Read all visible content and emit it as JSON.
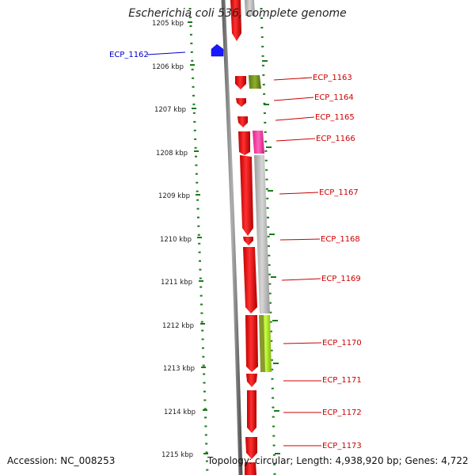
{
  "title": "Escherichia coli 536, complete genome",
  "footer": {
    "accession": "Accession: NC_008253",
    "topology": "Topology: circular; Length: 4,938,920 bp; Genes: 4,722"
  },
  "colors": {
    "forward_gene": "#ff0000",
    "reverse_gene": "#0000ff",
    "tick_marks": "#1a7a1a",
    "backbone": "#888888",
    "label_forward": "#cc0000",
    "label_reverse": "#0000cc"
  },
  "scale": {
    "unit": "kbp",
    "ticks": [
      "1205 kbp",
      "1206 kbp",
      "1207 kbp",
      "1208 kbp",
      "1209 kbp",
      "1210 kbp",
      "1211 kbp",
      "1212 kbp",
      "1213 kbp",
      "1214 kbp",
      "1215 kbp"
    ]
  },
  "genes": [
    {
      "label": "ECP_1162",
      "strand": "reverse"
    },
    {
      "label": "ECP_1163",
      "strand": "forward"
    },
    {
      "label": "ECP_1164",
      "strand": "forward"
    },
    {
      "label": "ECP_1165",
      "strand": "forward"
    },
    {
      "label": "ECP_1166",
      "strand": "forward"
    },
    {
      "label": "ECP_1167",
      "strand": "forward"
    },
    {
      "label": "ECP_1168",
      "strand": "forward"
    },
    {
      "label": "ECP_1169",
      "strand": "forward"
    },
    {
      "label": "ECP_1170",
      "strand": "forward"
    },
    {
      "label": "ECP_1171",
      "strand": "forward"
    },
    {
      "label": "ECP_1172",
      "strand": "forward"
    },
    {
      "label": "ECP_1173",
      "strand": "forward"
    }
  ]
}
